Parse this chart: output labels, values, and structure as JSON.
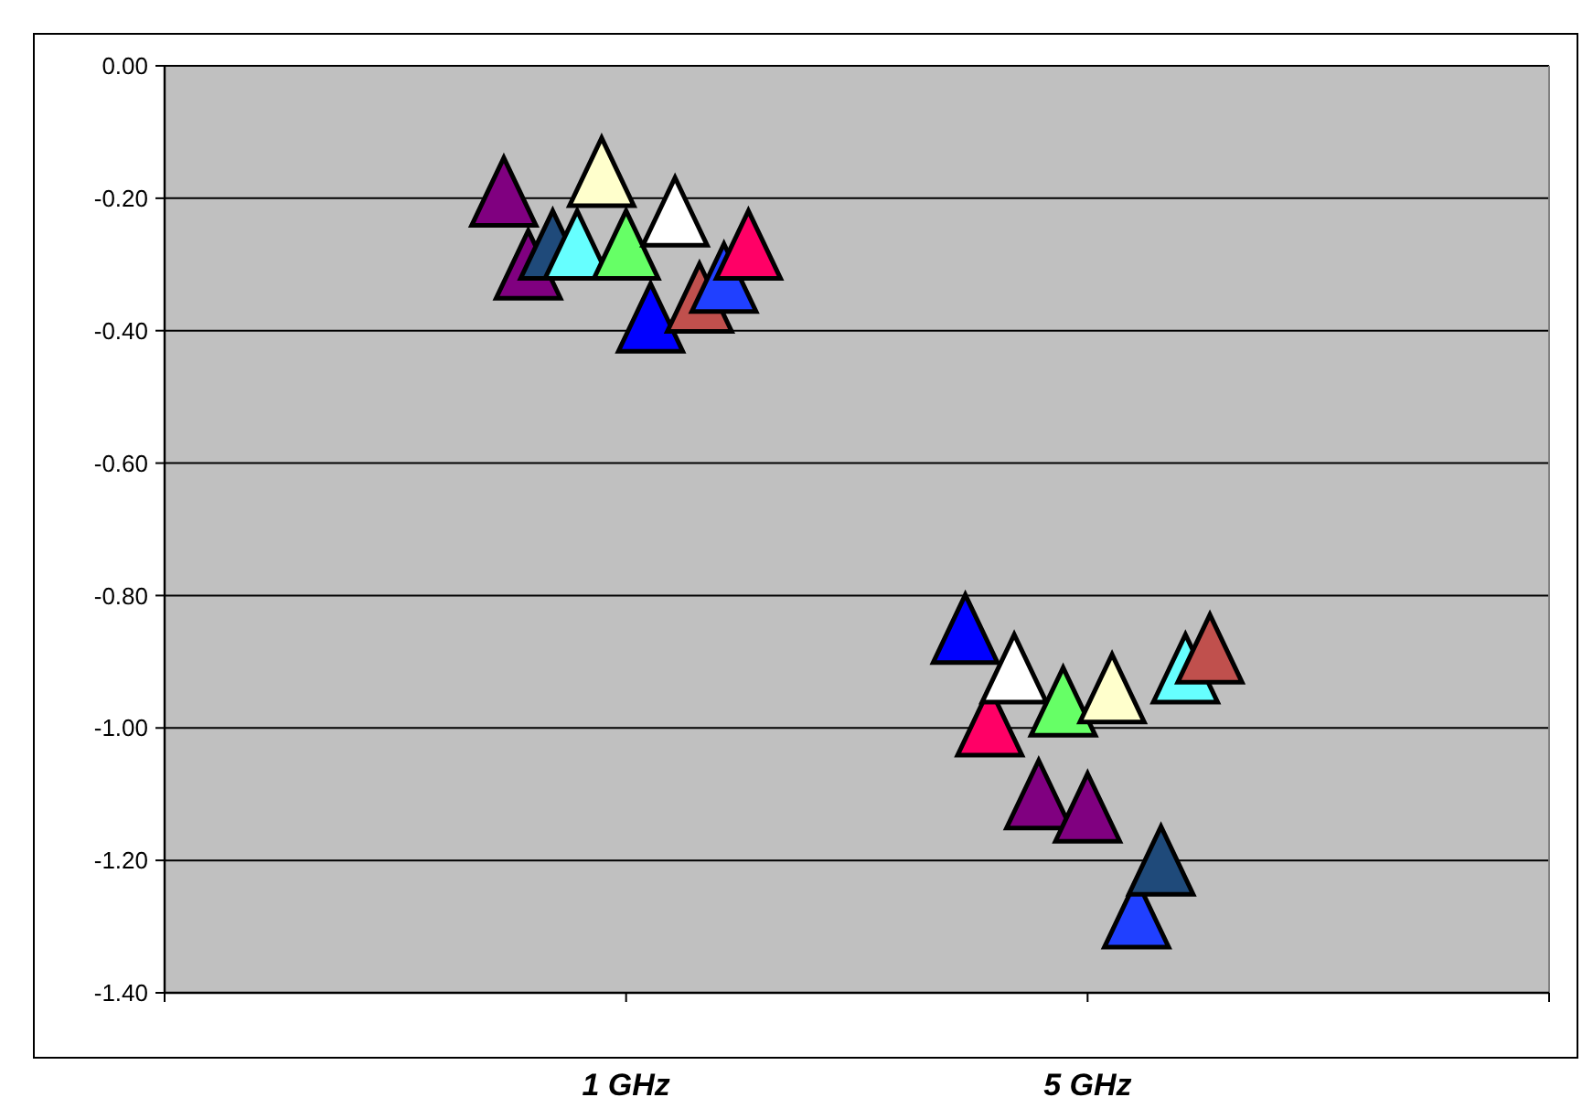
{
  "chart_data": {
    "type": "scatter",
    "marker": "triangle",
    "grid": "y",
    "categories": [
      "1 GHz",
      "5 GHz"
    ],
    "ylim": [
      -1.4,
      0
    ],
    "yticks": [
      {
        "value": -1.4,
        "label": "-1.40"
      },
      {
        "value": -1.2,
        "label": "-1.20"
      },
      {
        "value": -1,
        "label": "-1.00"
      },
      {
        "value": -0.8,
        "label": "-0.80"
      },
      {
        "value": -0.6,
        "label": "-0.60"
      },
      {
        "value": -0.4,
        "label": "-0.40"
      },
      {
        "value": -0.2,
        "label": "-0.20"
      },
      {
        "value": 0,
        "label": "0.00"
      }
    ],
    "series": [
      {
        "color": "#800080",
        "values": [
          -0.19,
          null
        ]
      },
      {
        "color": "#800080",
        "values": [
          -0.3,
          null
        ]
      },
      {
        "color": "#1f4a7a",
        "values": [
          -0.27,
          null
        ]
      },
      {
        "color": "#66ffff",
        "values": [
          -0.27,
          null
        ]
      },
      {
        "color": "#ffffcc",
        "values": [
          -0.16,
          null
        ]
      },
      {
        "color": "#66ff66",
        "values": [
          -0.27,
          null
        ]
      },
      {
        "color": "#0000ff",
        "values": [
          -0.38,
          null
        ]
      },
      {
        "color": "#ffffff",
        "values": [
          -0.22,
          null
        ]
      },
      {
        "color": "#c0504d",
        "values": [
          -0.35,
          null
        ]
      },
      {
        "color": "#2040ff",
        "values": [
          -0.32,
          null
        ]
      },
      {
        "color": "#ff0066",
        "values": [
          -0.27,
          null
        ]
      },
      {
        "color": "#0000ff",
        "values": [
          null,
          -0.85
        ]
      },
      {
        "color": "#ff0066",
        "values": [
          null,
          -0.99
        ]
      },
      {
        "color": "#ffffff",
        "values": [
          null,
          -0.91
        ]
      },
      {
        "color": "#800080",
        "values": [
          null,
          -1.1
        ]
      },
      {
        "color": "#66ff66",
        "values": [
          null,
          -0.96
        ]
      },
      {
        "color": "#800080",
        "values": [
          null,
          -1.12
        ]
      },
      {
        "color": "#ffffcc",
        "values": [
          null,
          -0.94
        ]
      },
      {
        "color": "#2040ff",
        "values": [
          null,
          -1.28
        ]
      },
      {
        "color": "#1f4a7a",
        "values": [
          null,
          -1.2
        ]
      },
      {
        "color": "#66ffff",
        "values": [
          null,
          -0.91
        ]
      },
      {
        "color": "#c0504d",
        "values": [
          null,
          -0.88
        ]
      }
    ]
  }
}
